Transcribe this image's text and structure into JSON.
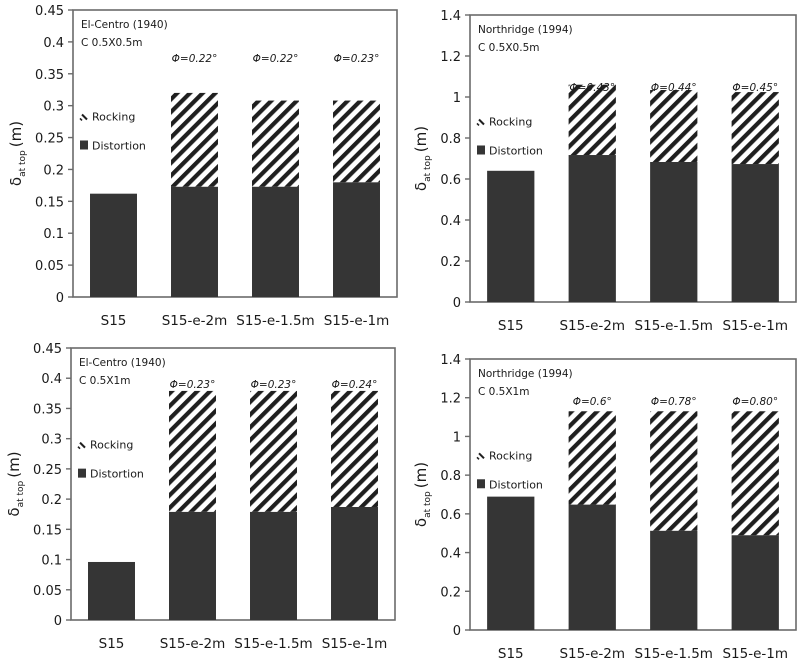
{
  "colors": {
    "distortion": "#353535",
    "rocking_stripe": "#1f1f1f",
    "axis": "#6a6a6a",
    "background": "#ffffff"
  },
  "chart_data": [
    {
      "type": "bar",
      "stacked": true,
      "position": "top-left",
      "annotation_lines": [
        "El-Centro (1940)",
        "C 0.5X0.5m"
      ],
      "categories": [
        "S15",
        "S15-e-2m",
        "S15-e-1.5m",
        "S15-e-1m"
      ],
      "series": [
        {
          "name": "Distortion",
          "values": [
            0.162,
            0.173,
            0.173,
            0.18
          ]
        },
        {
          "name": "Rocking",
          "values": [
            0,
            0.147,
            0.135,
            0.128
          ]
        }
      ],
      "totals": [
        0.162,
        0.32,
        0.308,
        0.308
      ],
      "phi_labels": [
        "",
        "Φ=0.22°",
        "Φ=0.22°",
        "Φ=0.23°"
      ],
      "ylabel_main": "δ",
      "ylabel_sub": "at top",
      "ylabel_unit": "(m)",
      "xlabel": "",
      "ylim": [
        0,
        0.45
      ],
      "yticks": [
        0,
        0.05,
        0.1,
        0.15,
        0.2,
        0.25,
        0.3,
        0.35,
        0.4,
        0.45
      ],
      "ytick_labels": [
        "0",
        "0.05",
        "0.1",
        "0.15",
        "0.2",
        "0.25",
        "0.3",
        "0.35",
        "0.4",
        "0.45"
      ],
      "legend": {
        "placement": "left-middle",
        "entries": [
          "Rocking",
          "Distortion"
        ]
      },
      "grid": false
    },
    {
      "type": "bar",
      "stacked": true,
      "position": "top-right",
      "annotation_lines": [
        "Northridge (1994)",
        "C 0.5X0.5m"
      ],
      "categories": [
        "S15",
        "S15-e-2m",
        "S15-e-1.5m",
        "S15-e-1m"
      ],
      "series": [
        {
          "name": "Distortion",
          "values": [
            0.64,
            0.717,
            0.683,
            0.673
          ]
        },
        {
          "name": "Rocking",
          "values": [
            0,
            0.343,
            0.351,
            0.351
          ]
        }
      ],
      "totals": [
        0.64,
        1.06,
        1.034,
        1.024
      ],
      "phi_labels": [
        "",
        "Φ=0.43°",
        "Φ=0.44°",
        "Φ=0.45°"
      ],
      "ylabel_main": "δ",
      "ylabel_sub": "at top",
      "ylabel_unit": "(m)",
      "xlabel": "",
      "ylim": [
        0,
        1.4
      ],
      "yticks": [
        0,
        0.2,
        0.4,
        0.6,
        0.8,
        1.0,
        1.2,
        1.4
      ],
      "ytick_labels": [
        "0",
        "0.2",
        "0.4",
        "0.6",
        "0.8",
        "1",
        "1.2",
        "1.4"
      ],
      "legend": {
        "placement": "left-middle",
        "entries": [
          "Rocking",
          "Distortion"
        ]
      },
      "grid": false
    },
    {
      "type": "bar",
      "stacked": true,
      "position": "bottom-left",
      "annotation_lines": [
        "El-Centro (1940)",
        "C 0.5X1m"
      ],
      "categories": [
        "S15",
        "S15-e-2m",
        "S15-e-1.5m",
        "S15-e-1m"
      ],
      "series": [
        {
          "name": "Distortion",
          "values": [
            0.096,
            0.179,
            0.179,
            0.187
          ]
        },
        {
          "name": "Rocking",
          "values": [
            0,
            0.2,
            0.2,
            0.192
          ]
        }
      ],
      "totals": [
        0.096,
        0.379,
        0.379,
        0.379
      ],
      "phi_labels": [
        "",
        "Φ=0.23°",
        "Φ=0.23°",
        "Φ=0.24°"
      ],
      "ylabel_main": "δ",
      "ylabel_sub": "at top",
      "ylabel_unit": "(m)",
      "xlabel": "",
      "ylim": [
        0,
        0.45
      ],
      "yticks": [
        0,
        0.05,
        0.1,
        0.15,
        0.2,
        0.25,
        0.3,
        0.35,
        0.4,
        0.45
      ],
      "ytick_labels": [
        "0",
        "0.05",
        "0.1",
        "0.15",
        "0.2",
        "0.25",
        "0.3",
        "0.35",
        "0.4",
        "0.45"
      ],
      "legend": {
        "placement": "left-middle",
        "entries": [
          "Rocking",
          "Distortion"
        ]
      },
      "grid": false
    },
    {
      "type": "bar",
      "stacked": true,
      "position": "bottom-right",
      "annotation_lines": [
        "Northridge (1994)",
        "C 0.5X1m"
      ],
      "categories": [
        "S15",
        "S15-e-2m",
        "S15-e-1.5m",
        "S15-e-1m"
      ],
      "series": [
        {
          "name": "Distortion",
          "values": [
            0.689,
            0.648,
            0.513,
            0.49
          ]
        },
        {
          "name": "Rocking",
          "values": [
            0,
            0.482,
            0.617,
            0.64
          ]
        }
      ],
      "totals": [
        0.689,
        1.13,
        1.13,
        1.13
      ],
      "phi_labels": [
        "",
        "Φ=0.6°",
        "Φ=0.78°",
        "Φ=0.80°"
      ],
      "ylabel_main": "δ",
      "ylabel_sub": "at top",
      "ylabel_unit": "(m)",
      "xlabel": "",
      "ylim": [
        0,
        1.4
      ],
      "yticks": [
        0,
        0.2,
        0.4,
        0.6,
        0.8,
        1.0,
        1.2,
        1.4
      ],
      "ytick_labels": [
        "0",
        "0.2",
        "0.4",
        "0.6",
        "0.8",
        "1",
        "1.2",
        "1.4"
      ],
      "legend": {
        "placement": "left-middle",
        "entries": [
          "Rocking",
          "Distortion"
        ]
      },
      "grid": false
    }
  ]
}
